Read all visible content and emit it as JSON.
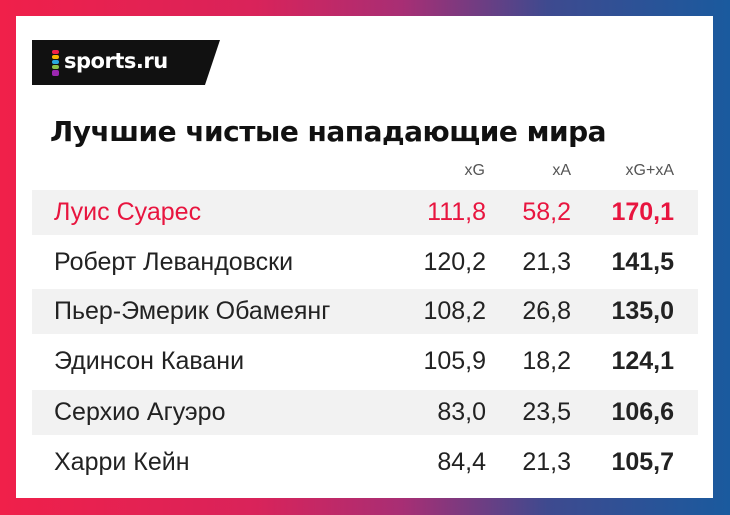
{
  "brand": {
    "logo_text": "sports.ru",
    "mark_colors": [
      "#f0204a",
      "#f7b500",
      "#29a9e0",
      "#8bc34a",
      "#9c27b0"
    ]
  },
  "title": "Лучшие чистые нападающие мира",
  "columns": {
    "xg": "xG",
    "xa": "xA",
    "sum": "xG+xA"
  },
  "rows": [
    {
      "name": "Луис Суарес",
      "xg": "111,8",
      "xa": "58,2",
      "sum": "170,1"
    },
    {
      "name": "Роберт Левандовски",
      "xg": "120,2",
      "xa": "21,3",
      "sum": "141,5"
    },
    {
      "name": "Пьер-Эмерик Обамеянг",
      "xg": "108,2",
      "xa": "26,8",
      "sum": "135,0"
    },
    {
      "name": "Эдинсон Кавани",
      "xg": "105,9",
      "xa": "18,2",
      "sum": "124,1"
    },
    {
      "name": "Серхио Агуэро",
      "xg": "83,0",
      "xa": "23,5",
      "sum": "106,6"
    },
    {
      "name": "Харри Кейн",
      "xg": "84,4",
      "xa": "21,3",
      "sum": "105,7"
    }
  ],
  "colors": {
    "highlight": "#e8153f",
    "row_shade": "#f2f2f2"
  }
}
